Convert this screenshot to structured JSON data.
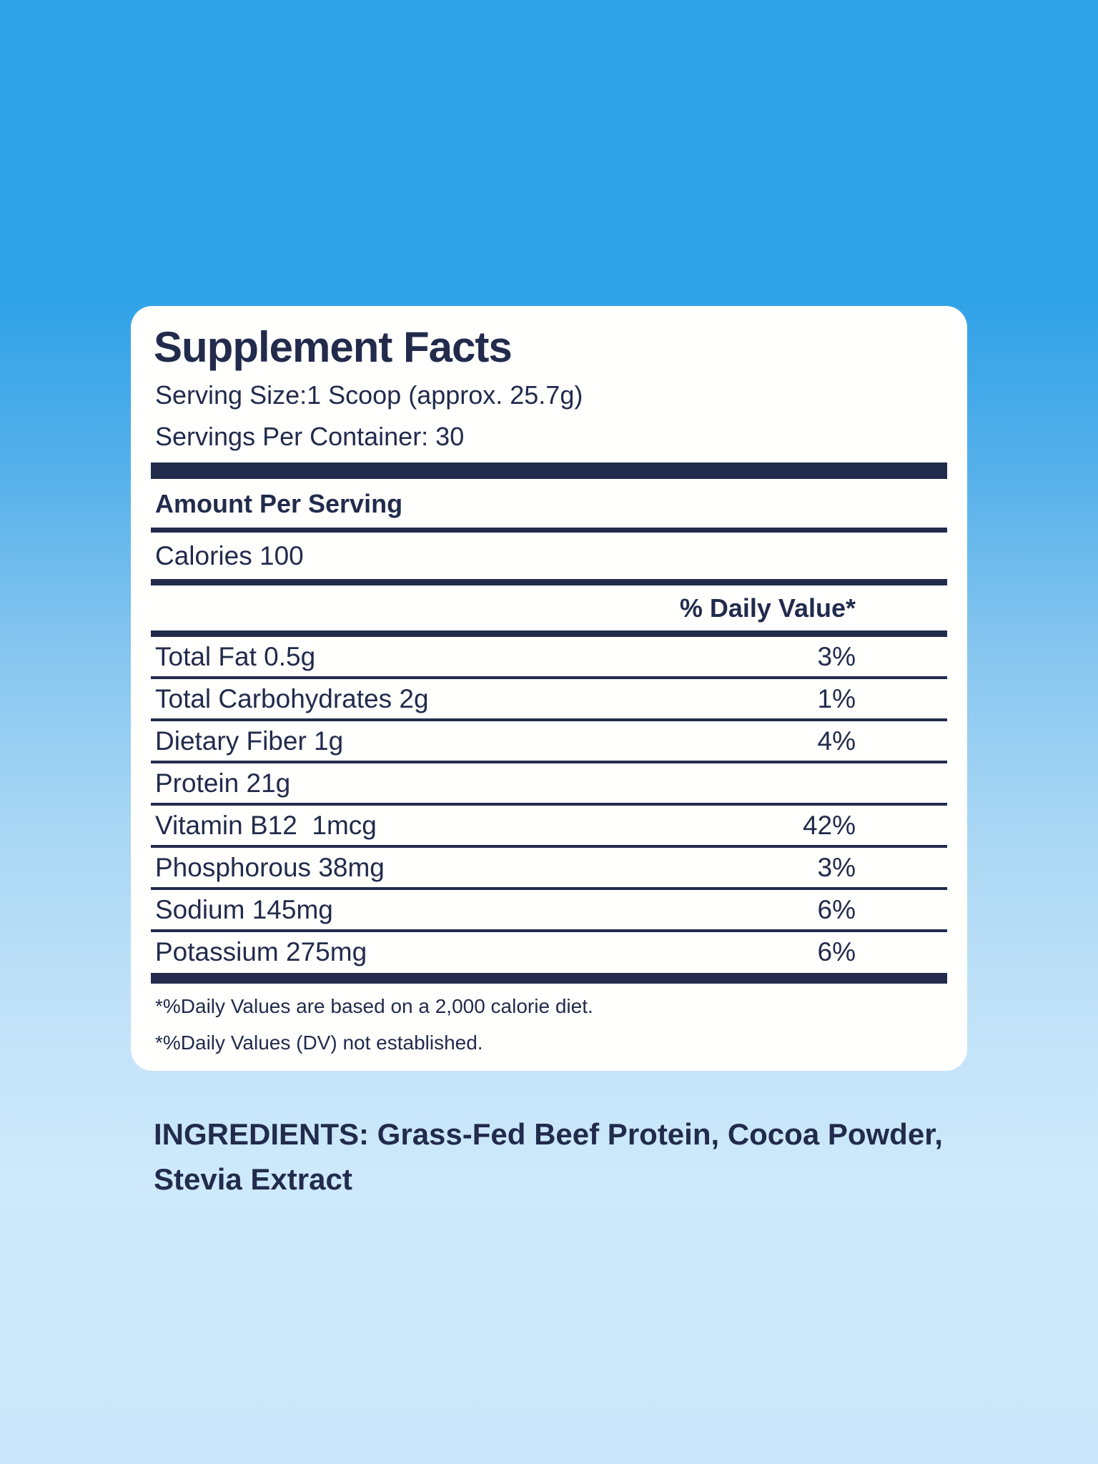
{
  "colors": {
    "navy": "#222b4c",
    "card_bg": "#fffffd",
    "bg_top": "#2fa2e7",
    "bg_bottom": "#cbe6fa"
  },
  "label": {
    "title": "Supplement Facts",
    "serving_size": "Serving Size:1 Scoop (approx. 25.7g)",
    "servings_per_container": "Servings Per Container: 30",
    "amount_per_serving": "Amount Per Serving",
    "calories": "Calories 100",
    "daily_value_header": "% Daily Value*",
    "rows": [
      {
        "label": "Total Fat 0.5g",
        "dv": "3%"
      },
      {
        "label": "Total Carbohydrates 2g",
        "dv": "1%"
      },
      {
        "label": "Dietary Fiber 1g",
        "dv": "4%"
      },
      {
        "label": "Protein 21g",
        "dv": ""
      },
      {
        "label": "Vitamin B12  1mcg",
        "dv": "42%"
      },
      {
        "label": "Phosphorous 38mg",
        "dv": "3%"
      },
      {
        "label": "Sodium 145mg",
        "dv": "6%"
      },
      {
        "label": "Potassium 275mg",
        "dv": "6%"
      }
    ],
    "footnotes": [
      "*%Daily Values are based on a 2,000 calorie diet.",
      "*%Daily Values (DV) not established."
    ]
  },
  "ingredients_text": "INGREDIENTS: Grass-Fed Beef Protein, Cocoa Powder, Stevia Extract"
}
